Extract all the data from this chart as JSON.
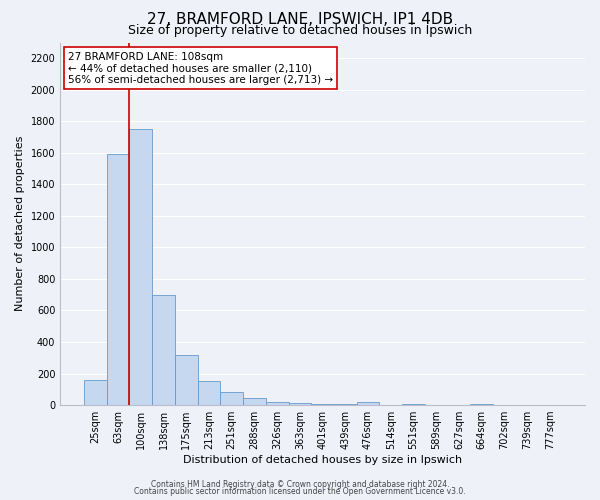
{
  "title": "27, BRAMFORD LANE, IPSWICH, IP1 4DB",
  "subtitle": "Size of property relative to detached houses in Ipswich",
  "xlabel": "Distribution of detached houses by size in Ipswich",
  "ylabel": "Number of detached properties",
  "bar_labels": [
    "25sqm",
    "63sqm",
    "100sqm",
    "138sqm",
    "175sqm",
    "213sqm",
    "251sqm",
    "288sqm",
    "326sqm",
    "363sqm",
    "401sqm",
    "439sqm",
    "476sqm",
    "514sqm",
    "551sqm",
    "589sqm",
    "627sqm",
    "664sqm",
    "702sqm",
    "739sqm",
    "777sqm"
  ],
  "bar_values": [
    160,
    1590,
    1750,
    700,
    315,
    155,
    80,
    45,
    20,
    15,
    10,
    5,
    20,
    0,
    10,
    0,
    0,
    10,
    0,
    0,
    0
  ],
  "bar_color": "#c5d8f0",
  "bar_edge_color": "#6699cc",
  "vline_color": "#cc0000",
  "vline_x": 1.5,
  "ylim": [
    0,
    2300
  ],
  "yticks": [
    0,
    200,
    400,
    600,
    800,
    1000,
    1200,
    1400,
    1600,
    1800,
    2000,
    2200
  ],
  "annotation_line1": "27 BRAMFORD LANE: 108sqm",
  "annotation_line2": "← 44% of detached houses are smaller (2,110)",
  "annotation_line3": "56% of semi-detached houses are larger (2,713) →",
  "footer_line1": "Contains HM Land Registry data © Crown copyright and database right 2024.",
  "footer_line2": "Contains public sector information licensed under the Open Government Licence v3.0.",
  "background_color": "#eef2f8",
  "grid_color": "#ffffff",
  "title_fontsize": 11,
  "subtitle_fontsize": 9,
  "axis_label_fontsize": 8,
  "tick_fontsize": 7,
  "annotation_fontsize": 7.5,
  "footer_fontsize": 5.5
}
